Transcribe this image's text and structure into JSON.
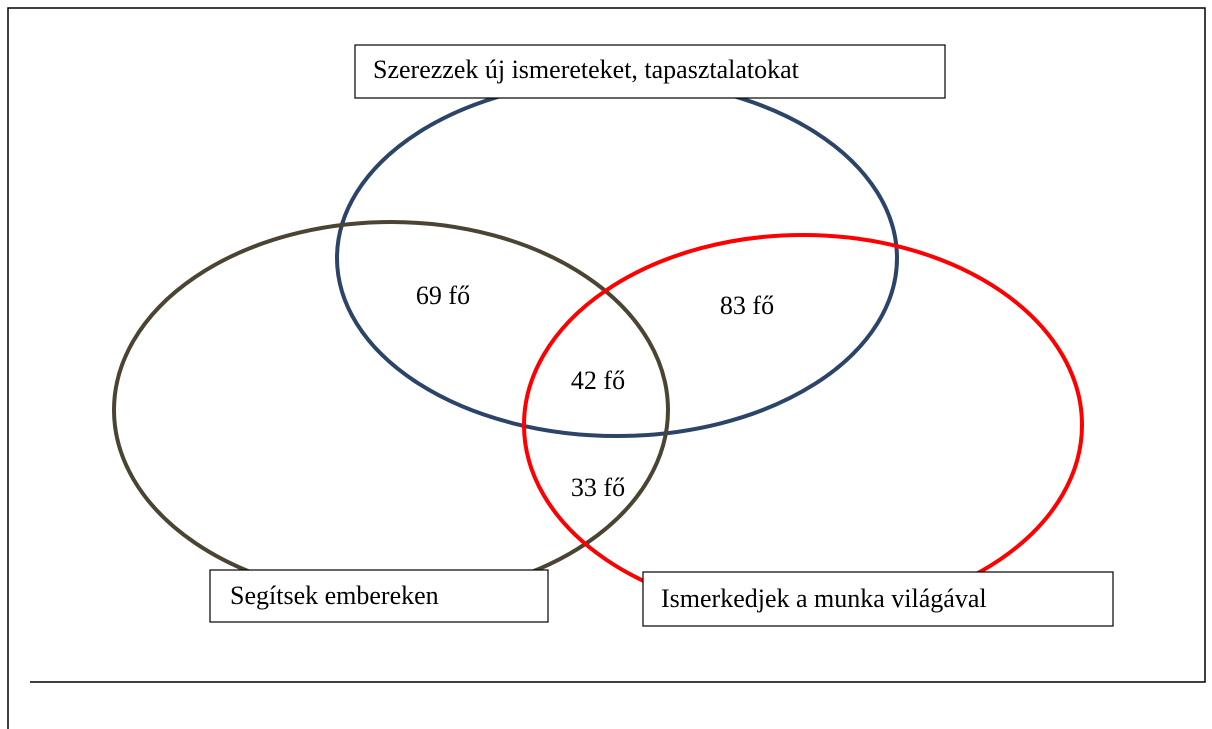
{
  "sets": [
    {
      "label": "Szerezzek új ismereteket, tapasztalatokat",
      "color": "#2b4468"
    },
    {
      "label": "Segítsek embereken",
      "color": "#4b4432"
    },
    {
      "label": "Ismerkedjek a munka világával",
      "color": "#ff0000"
    }
  ],
  "regions": [
    {
      "label": "69 fő"
    },
    {
      "label": "83 fő"
    },
    {
      "label": "42 fő"
    },
    {
      "label": "33 fő"
    }
  ]
}
